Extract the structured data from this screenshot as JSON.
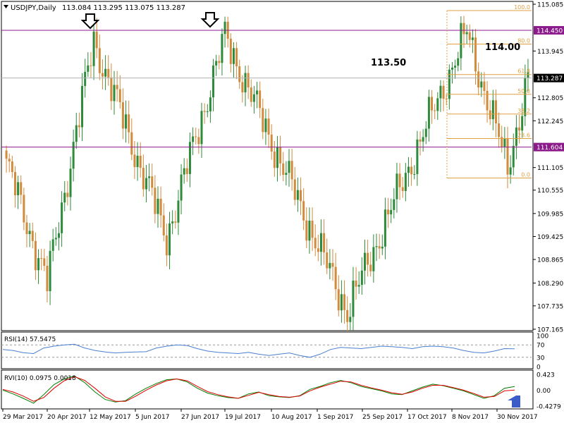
{
  "header": {
    "symbol_label": "USDJPY,Daily",
    "ohlc": "113.084 113.295 113.075 113.287"
  },
  "colors": {
    "bull": "#2e8b3a",
    "bear": "#d28a3c",
    "resistance": "#8b1a8b",
    "fib": "#e0a040",
    "rsi": "#4a7fd0",
    "rvi_main": "#008000",
    "rvi_signal": "#e00000",
    "price_tag": "#000000",
    "arrow_up": "#3b5cc8"
  },
  "chart_data": [
    {
      "type": "candlestick",
      "title": "USDJPY,Daily",
      "y_axis_ticks": [
        "115.085",
        "114.450",
        "113.945",
        "113.287",
        "112.805",
        "112.245",
        "111.604",
        "111.105",
        "110.555",
        "109.985",
        "109.425",
        "108.865",
        "108.290",
        "107.735",
        "107.165"
      ],
      "ylim": [
        107.165,
        115.085
      ],
      "x_axis_labels": [
        "29 Mar 2017",
        "20 Apr 2017",
        "12 May 2017",
        "5 Jun 2017",
        "27 Jun 2017",
        "19 Jul 2017",
        "10 Aug 2017",
        "1 Sep 2017",
        "25 Sep 2017",
        "17 Oct 2017",
        "8 Nov 2017",
        "30 Nov 2017"
      ],
      "current_price": "113.287",
      "levels": [
        {
          "label": "114.450",
          "value": 114.45
        },
        {
          "label": "111.604",
          "value": 111.604
        }
      ],
      "fibonacci": {
        "high": 114.93,
        "low": 110.85,
        "levels": [
          {
            "label": "100.0",
            "ratio": 1.0
          },
          {
            "label": "80.0",
            "ratio": 0.8
          },
          {
            "label": "61.8",
            "ratio": 0.618
          },
          {
            "label": "50.0",
            "ratio": 0.5
          },
          {
            "label": "38.2",
            "ratio": 0.382
          },
          {
            "label": "23.6",
            "ratio": 0.236
          },
          {
            "label": "0.0",
            "ratio": 0.0
          }
        ]
      },
      "annotations": [
        {
          "text": "113.50",
          "value": 113.5
        },
        {
          "text": "114.00",
          "value": 114.0
        }
      ],
      "key_closes": [
        {
          "date": "29 Mar 2017",
          "value": 111.2
        },
        {
          "date": "17 Apr 2017",
          "value": 108.3
        },
        {
          "date": "10 May 2017",
          "value": 114.2
        },
        {
          "date": "14 Jun 2017",
          "value": 109.4
        },
        {
          "date": "11 Jul 2017",
          "value": 114.3
        },
        {
          "date": "8 Sep 2017",
          "value": 107.6
        },
        {
          "date": "6 Nov 2017",
          "value": 114.4
        },
        {
          "date": "27 Nov 2017",
          "value": 111.1
        },
        {
          "date": "6 Dec 2017",
          "value": 113.287
        }
      ]
    },
    {
      "type": "line",
      "title": "RSI(14) 57.5475",
      "y_axis_ticks": [
        "100",
        "70",
        "30",
        "0"
      ],
      "ylim": [
        0,
        100
      ],
      "series": [
        {
          "values": [
            55,
            52,
            45,
            42,
            60,
            66,
            70,
            72,
            60,
            52,
            47,
            44,
            46,
            47,
            48,
            60,
            66,
            70,
            68,
            58,
            50,
            46,
            44,
            42,
            46,
            40,
            36,
            40,
            44,
            36,
            30,
            40,
            55,
            62,
            60,
            58,
            62,
            66,
            64,
            62,
            58,
            64,
            66,
            64,
            60,
            52,
            46,
            44,
            50,
            58,
            57.5
          ]
        }
      ]
    },
    {
      "type": "line",
      "title": "RVI(10) 0.0975 0.0018",
      "y_axis_ticks": [
        "0.423",
        "0.00",
        "-0.4279"
      ],
      "ylim": [
        -0.4279,
        0.423
      ],
      "series": [
        {
          "values": [
            0.0,
            -0.1,
            -0.22,
            -0.35,
            -0.12,
            0.15,
            0.3,
            0.38,
            0.2,
            -0.05,
            -0.25,
            -0.32,
            -0.28,
            -0.1,
            0.05,
            0.18,
            0.28,
            0.3,
            0.22,
            0.05,
            -0.08,
            -0.15,
            -0.2,
            -0.22,
            -0.1,
            -0.05,
            -0.15,
            -0.18,
            -0.2,
            -0.15,
            0.02,
            0.1,
            0.2,
            0.26,
            0.2,
            0.1,
            0.04,
            -0.02,
            -0.1,
            -0.12,
            -0.02,
            0.08,
            0.16,
            0.12,
            0.05,
            -0.02,
            -0.12,
            -0.22,
            -0.15,
            0.05,
            0.0975
          ]
        },
        {
          "values": [
            0.02,
            -0.05,
            -0.16,
            -0.3,
            -0.2,
            0.05,
            0.25,
            0.36,
            0.26,
            0.05,
            -0.18,
            -0.3,
            -0.3,
            -0.16,
            0.0,
            0.14,
            0.25,
            0.3,
            0.25,
            0.1,
            -0.04,
            -0.12,
            -0.18,
            -0.22,
            -0.14,
            -0.06,
            -0.12,
            -0.17,
            -0.19,
            -0.16,
            -0.02,
            0.08,
            0.16,
            0.24,
            0.22,
            0.13,
            0.06,
            0.0,
            -0.07,
            -0.11,
            -0.05,
            0.05,
            0.13,
            0.13,
            0.07,
            0.0,
            -0.09,
            -0.19,
            -0.17,
            -0.02,
            0.0018
          ]
        }
      ]
    }
  ]
}
